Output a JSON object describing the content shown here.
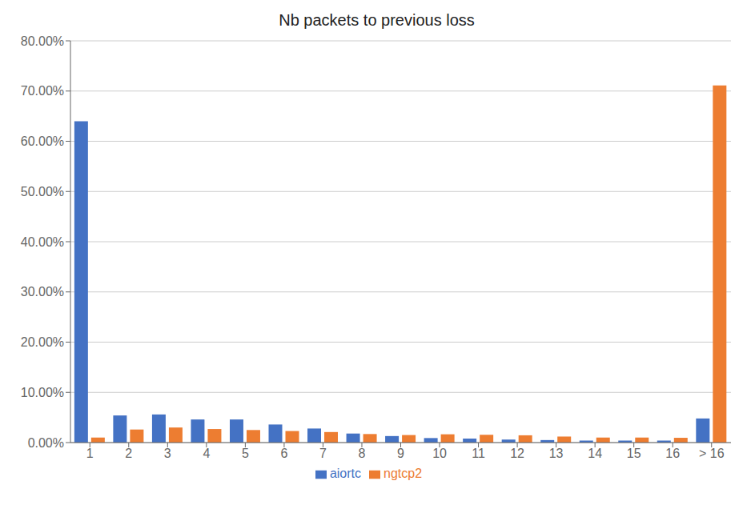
{
  "chart_data": {
    "type": "bar",
    "title": "Nb packets to previous loss",
    "categories": [
      "1",
      "2",
      "3",
      "4",
      "5",
      "6",
      "7",
      "8",
      "9",
      "10",
      "11",
      "12",
      "13",
      "14",
      "15",
      "16",
      "> 16"
    ],
    "series": [
      {
        "name": "aiortc",
        "color": "#4472C4",
        "values": [
          0.64,
          0.054,
          0.056,
          0.046,
          0.046,
          0.036,
          0.028,
          0.018,
          0.013,
          0.009,
          0.008,
          0.006,
          0.005,
          0.004,
          0.004,
          0.004,
          0.048
        ]
      },
      {
        "name": "ngtcp2",
        "color": "#ED7D31",
        "values": [
          0.01,
          0.026,
          0.03,
          0.027,
          0.025,
          0.023,
          0.021,
          0.017,
          0.015,
          0.0165,
          0.0155,
          0.0145,
          0.012,
          0.01,
          0.01,
          0.0095,
          0.711
        ]
      }
    ],
    "ylim": [
      0.0,
      0.8
    ],
    "yticks": [
      {
        "value": 0.0,
        "label": "0.00%"
      },
      {
        "value": 0.1,
        "label": "10.00%"
      },
      {
        "value": 0.2,
        "label": "20.00%"
      },
      {
        "value": 0.3,
        "label": "30.00%"
      },
      {
        "value": 0.4,
        "label": "40.00%"
      },
      {
        "value": 0.5,
        "label": "50.00%"
      },
      {
        "value": 0.6,
        "label": "60.00%"
      },
      {
        "value": 0.7,
        "label": "70.00%"
      },
      {
        "value": 0.8,
        "label": "80.00%"
      }
    ],
    "grid": true,
    "legend": "bottom"
  }
}
